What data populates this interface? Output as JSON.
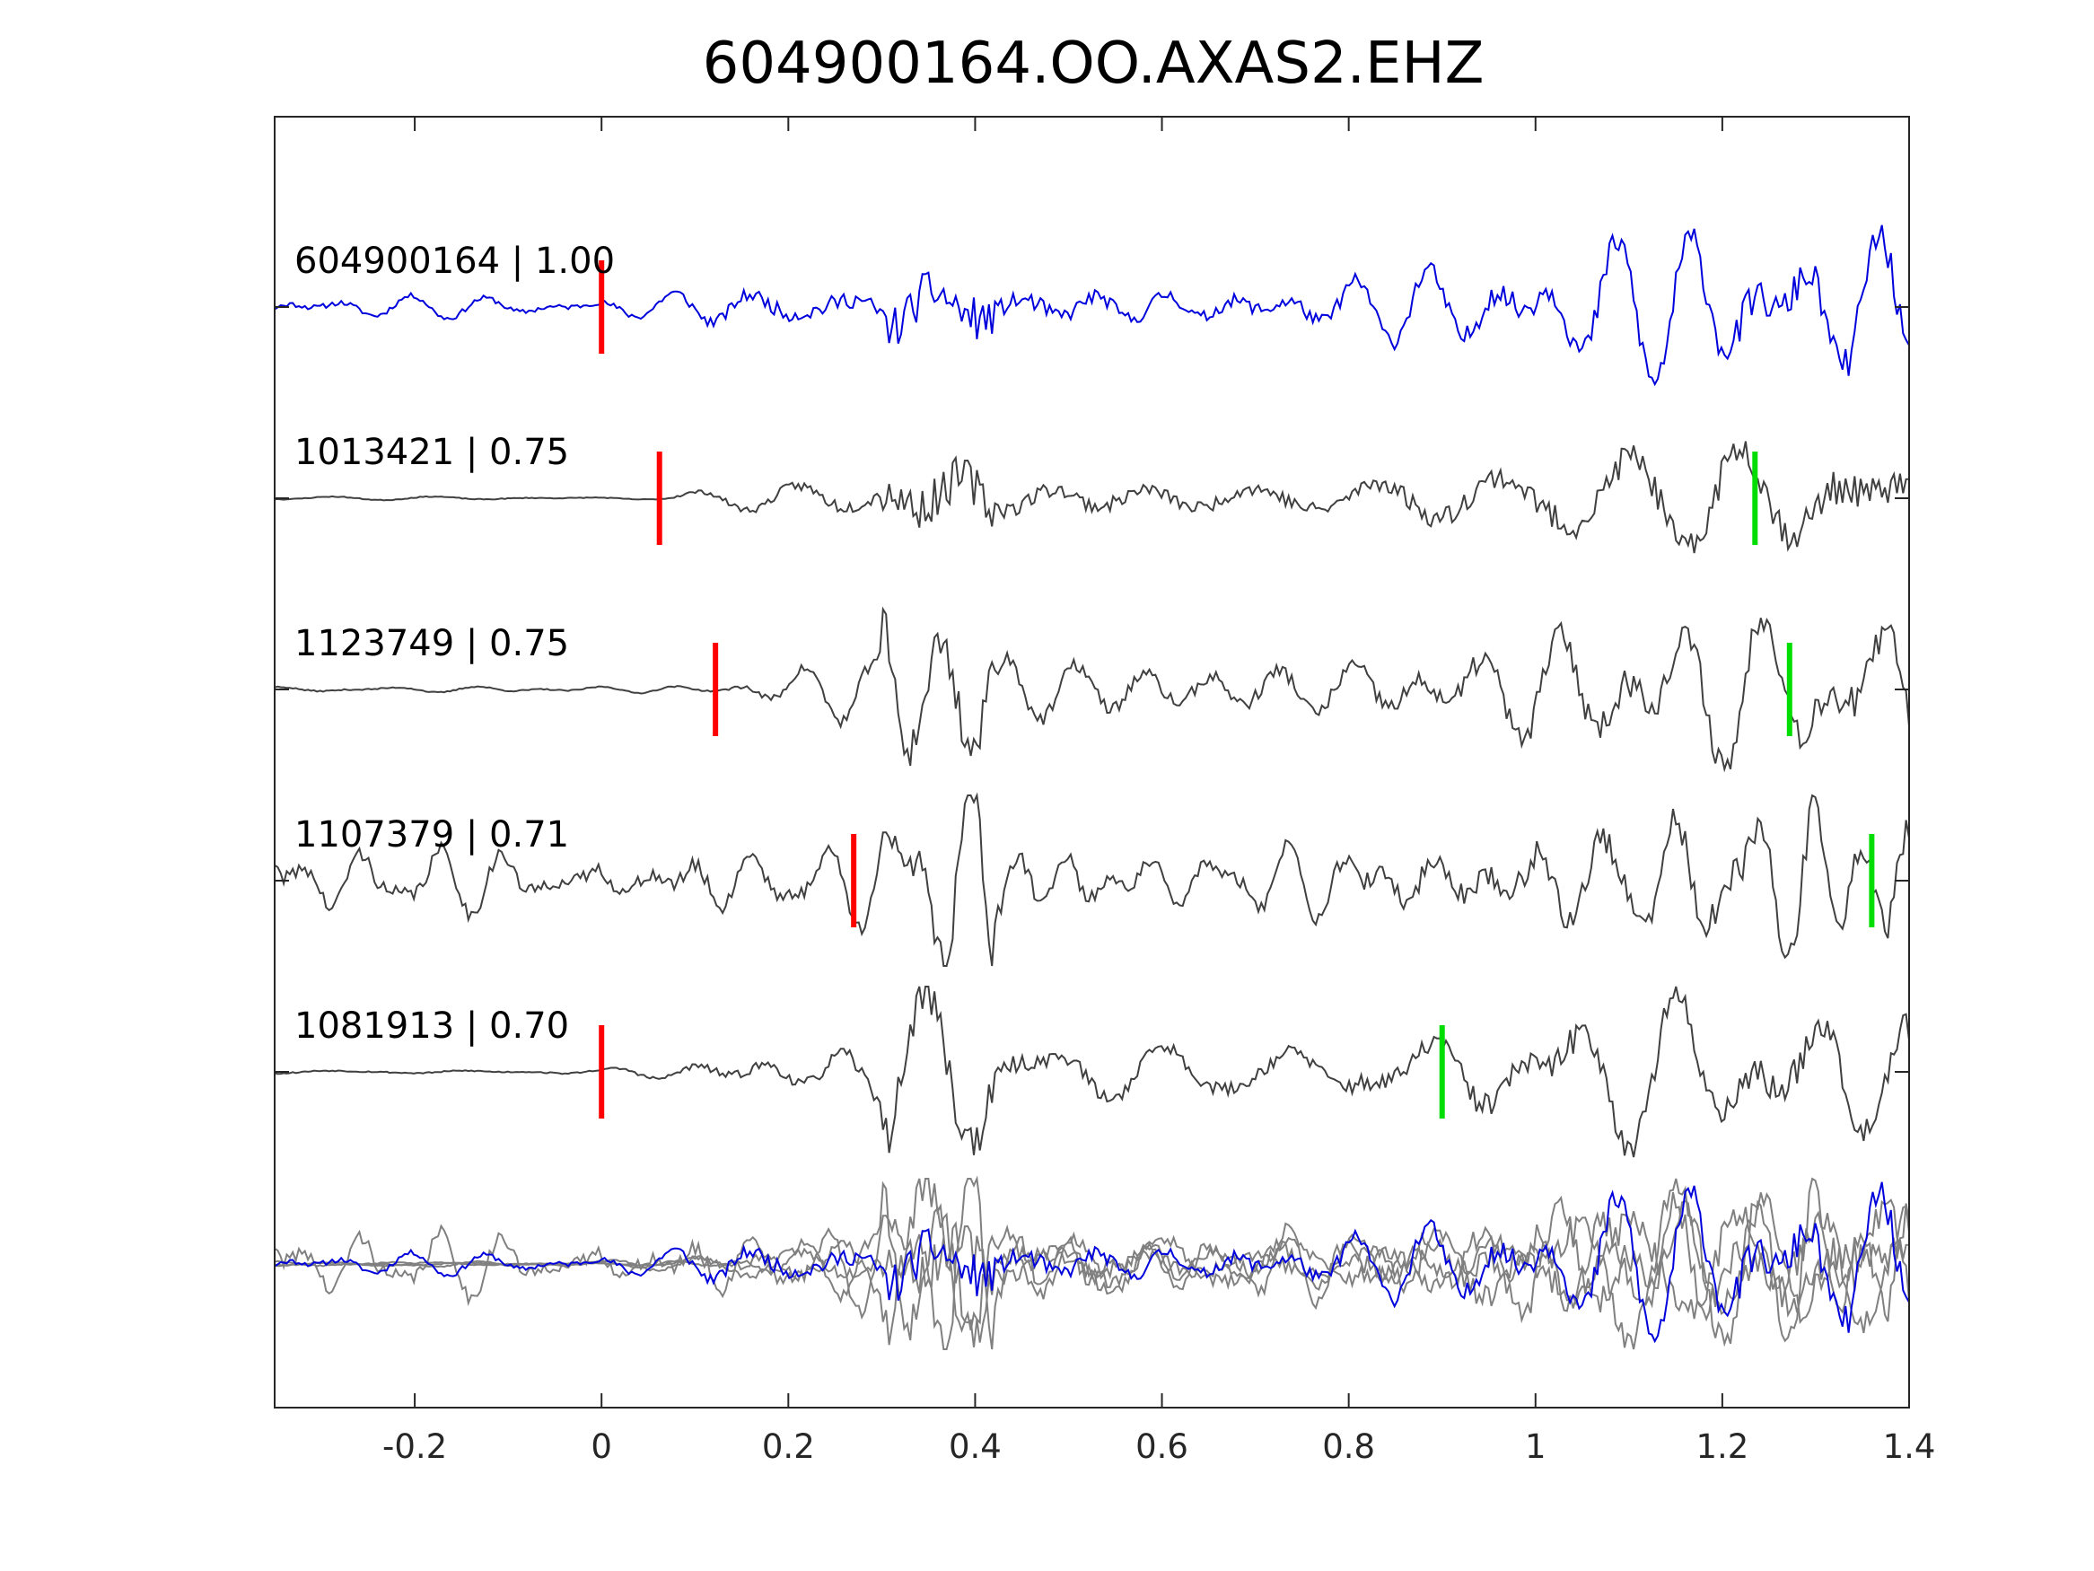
{
  "chart_data": {
    "type": "line",
    "title": "604900164.OO.AXAS2.EHZ",
    "xlabel": "",
    "ylabel": "",
    "xlim": [
      -0.35,
      1.4
    ],
    "x_ticks": [
      -0.2,
      0,
      0.2,
      0.4,
      0.6,
      0.8,
      1,
      1.2,
      1.4
    ],
    "x_tick_labels": [
      "-0.2",
      "0",
      "0.2",
      "0.4",
      "0.6",
      "0.8",
      "1",
      "1.2",
      "1.4"
    ],
    "grid": false,
    "colors": {
      "reference": "#0000dd",
      "match": "#404040",
      "overlay": "#808080",
      "p_pick": "#ff0000",
      "s_pick": "#00dd00"
    },
    "traces": [
      {
        "label": "604900164 | 1.00",
        "event_id": "604900164",
        "correlation": 1.0,
        "color": "reference",
        "p_pick": 0.0,
        "s_pick": null
      },
      {
        "label": "1013421 | 0.75",
        "event_id": "1013421",
        "correlation": 0.75,
        "color": "match",
        "p_pick": 0.062,
        "s_pick": 1.235
      },
      {
        "label": "1123749 | 0.75",
        "event_id": "1123749",
        "correlation": 0.75,
        "color": "match",
        "p_pick": 0.122,
        "s_pick": 1.272
      },
      {
        "label": "1107379 | 0.71",
        "event_id": "1107379",
        "correlation": 0.71,
        "color": "match",
        "p_pick": 0.27,
        "s_pick": 1.36
      },
      {
        "label": "1081913 | 0.70",
        "event_id": "1081913",
        "correlation": 0.7,
        "color": "match",
        "p_pick": 0.0,
        "s_pick": 0.9
      }
    ],
    "overlay": {
      "description_shown": false
    }
  }
}
